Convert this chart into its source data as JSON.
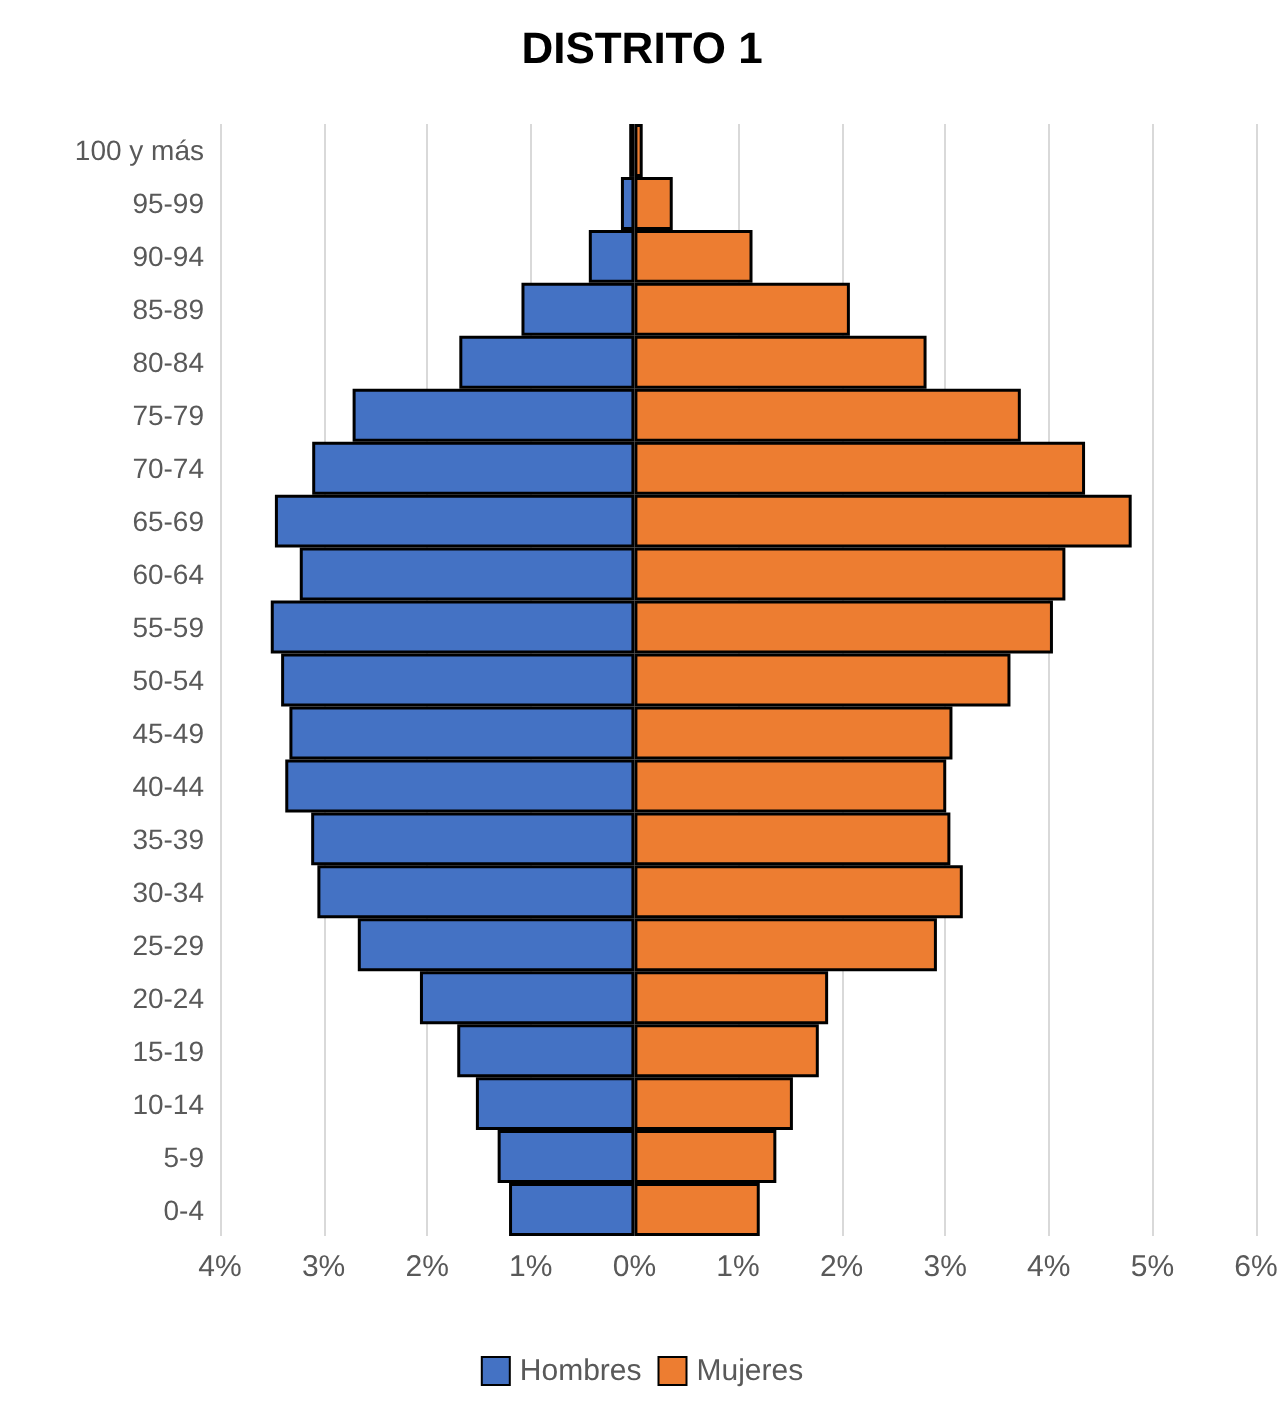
{
  "chart_data": {
    "type": "bar",
    "title": "DISTRITO 1",
    "orientation": "horizontal",
    "stacked": true,
    "grid": "x",
    "legend": "bottom",
    "categories": [
      "100 y más",
      "95-99",
      "90-94",
      "85-89",
      "80-84",
      "75-79",
      "70-74",
      "65-69",
      "60-64",
      "55-59",
      "50-54",
      "45-49",
      "40-44",
      "35-39",
      "30-34",
      "25-29",
      "20-24",
      "15-19",
      "10-14",
      "5-9",
      "0-4"
    ],
    "series": [
      {
        "name": "Hombres",
        "color": "#4472c4",
        "values": [
          -0.05,
          -0.13,
          -0.44,
          -1.09,
          -1.69,
          -2.72,
          -3.11,
          -3.47,
          -3.23,
          -3.51,
          -3.41,
          -3.33,
          -3.37,
          -3.12,
          -3.06,
          -2.67,
          -2.07,
          -1.71,
          -1.53,
          -1.32,
          -1.21
        ]
      },
      {
        "name": "Mujeres",
        "color": "#ed7d31",
        "values": [
          0.08,
          0.37,
          1.14,
          2.08,
          2.82,
          3.73,
          4.35,
          4.8,
          4.16,
          4.04,
          3.63,
          3.07,
          3.01,
          3.05,
          3.17,
          2.92,
          1.87,
          1.78,
          1.53,
          1.37,
          1.21
        ]
      }
    ],
    "xlim": [
      -4,
      6
    ],
    "xticks": [
      {
        "value": -4,
        "label": "4%"
      },
      {
        "value": -3,
        "label": "3%"
      },
      {
        "value": -2,
        "label": "2%"
      },
      {
        "value": -1,
        "label": "1%"
      },
      {
        "value": 0,
        "label": "0%"
      },
      {
        "value": 1,
        "label": "1%"
      },
      {
        "value": 2,
        "label": "2%"
      },
      {
        "value": 3,
        "label": "3%"
      },
      {
        "value": 4,
        "label": "4%"
      },
      {
        "value": 5,
        "label": "5%"
      },
      {
        "value": 6,
        "label": "6%"
      }
    ]
  }
}
